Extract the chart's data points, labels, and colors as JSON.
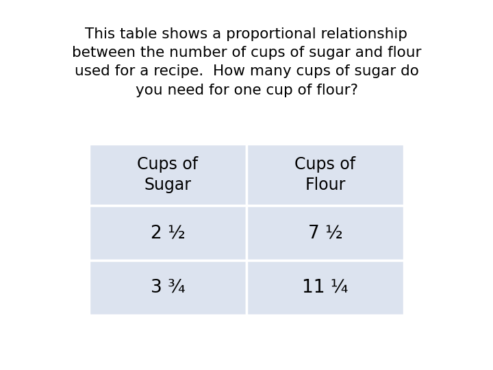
{
  "title_line1": "This table shows a proportional relationship",
  "title_line2": "between the number of cups of sugar and flour",
  "title_line3": "used for a recipe.  How many cups of sugar do",
  "title_line4": "you need for one cup of flour?",
  "col_headers": [
    "Cups of\nSugar",
    "Cups of\nFlour"
  ],
  "rows": [
    [
      "2 ½",
      "7 ½"
    ],
    [
      "3 ¾",
      "11 ¼"
    ]
  ],
  "table_bg_color": "#dce3ef",
  "text_color": "#000000",
  "bg_color": "#ffffff",
  "title_fontsize": 15.5,
  "table_fontsize": 19,
  "header_fontsize": 17
}
